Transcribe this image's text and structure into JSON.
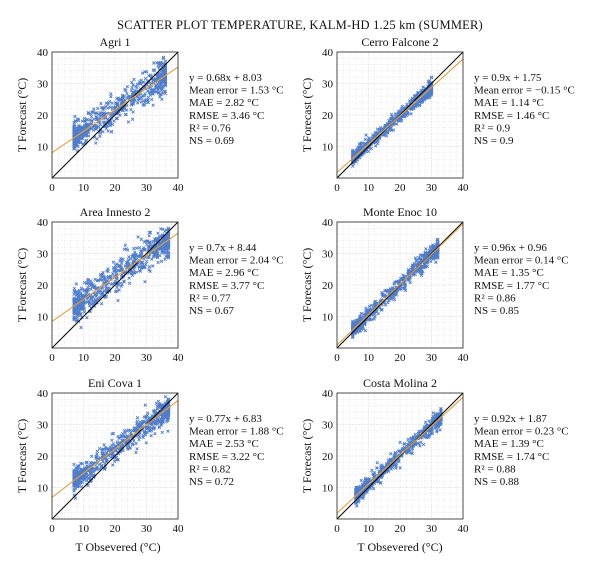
{
  "figure": {
    "title": "SCATTER PLOT TEMPERATURE, KALM-HD 1.25 km (SUMMER)",
    "xlabel_bottom": "T Obsevered (°C)",
    "colors": {
      "points": "#3f6fc4",
      "fit_line": "#e3a13b",
      "identity_line": "#000000",
      "grid": "#d9d9d9"
    }
  },
  "chart_data": [
    {
      "type": "scatter",
      "title": "Agri 1",
      "xlabel": "",
      "ylabel": "T Forecast (°C)",
      "xlim": [
        0,
        40
      ],
      "ylim": [
        0,
        40
      ],
      "xticks": [
        "0",
        "10",
        "20",
        "30",
        "40"
      ],
      "yticks": [
        "10",
        "20",
        "30",
        "40"
      ],
      "grid": true,
      "fit": {
        "slope": 0.68,
        "intercept": 8.03
      },
      "point_cloud": {
        "x_range": [
          7,
          36
        ],
        "spread": 3.5,
        "count": 650
      },
      "stats": [
        "y = 0.68x + 8.03",
        "Mean error = 1.53 °C",
        "MAE = 2.82 °C",
        "RMSE = 3.46 °C",
        "R² = 0.76",
        "NS = 0.69"
      ]
    },
    {
      "type": "scatter",
      "title": "Cerro Falcone 2",
      "xlabel": "",
      "ylabel": "T Forecast (°C)",
      "xlim": [
        0,
        40
      ],
      "ylim": [
        0,
        40
      ],
      "xticks": [
        "0",
        "10",
        "20",
        "30",
        "40"
      ],
      "yticks": [
        "10",
        "20",
        "30",
        "40"
      ],
      "grid": true,
      "fit": {
        "slope": 0.9,
        "intercept": 1.75
      },
      "point_cloud": {
        "x_range": [
          5,
          30
        ],
        "spread": 1.6,
        "count": 600
      },
      "stats": [
        "y = 0.9x + 1.75",
        "Mean error = −0.15 °C",
        "MAE = 1.14 °C",
        "RMSE = 1.46 °C",
        "R² = 0.9",
        "NS = 0.9"
      ]
    },
    {
      "type": "scatter",
      "title": "Area Innesto 2",
      "xlabel": "",
      "ylabel": "T Forecast (°C)",
      "xlim": [
        0,
        40
      ],
      "ylim": [
        0,
        40
      ],
      "xticks": [
        "0",
        "10",
        "20",
        "30",
        "40"
      ],
      "yticks": [
        "10",
        "20",
        "30",
        "40"
      ],
      "grid": true,
      "fit": {
        "slope": 0.7,
        "intercept": 8.44
      },
      "point_cloud": {
        "x_range": [
          7,
          37
        ],
        "spread": 3.8,
        "count": 650
      },
      "stats": [
        "y = 0.7x + 8.44",
        "Mean error = 2.04 °C",
        "MAE = 2.96 °C",
        "RMSE = 3.77 °C",
        "R² = 0.77",
        "NS = 0.67"
      ]
    },
    {
      "type": "scatter",
      "title": "Monte Enoc 10",
      "xlabel": "",
      "ylabel": "T Forecast (°C)",
      "xlim": [
        0,
        40
      ],
      "ylim": [
        0,
        40
      ],
      "xticks": [
        "0",
        "10",
        "20",
        "30",
        "40"
      ],
      "yticks": [
        "10",
        "20",
        "30",
        "40"
      ],
      "grid": true,
      "fit": {
        "slope": 0.96,
        "intercept": 0.96
      },
      "point_cloud": {
        "x_range": [
          5,
          32
        ],
        "spread": 1.9,
        "count": 600
      },
      "stats": [
        "y = 0.96x + 0.96",
        "Mean error = 0.14 °C",
        "MAE = 1.35 °C",
        "RMSE = 1.77 °C",
        "R² = 0.86",
        "NS = 0.85"
      ]
    },
    {
      "type": "scatter",
      "title": "Eni Cova 1",
      "xlabel": "",
      "ylabel": "T Forecast (°C)",
      "xlim": [
        0,
        40
      ],
      "ylim": [
        0,
        40
      ],
      "xticks": [
        "0",
        "10",
        "20",
        "30",
        "40"
      ],
      "yticks": [
        "10",
        "20",
        "30",
        "40"
      ],
      "grid": true,
      "fit": {
        "slope": 0.77,
        "intercept": 6.83
      },
      "point_cloud": {
        "x_range": [
          7,
          37
        ],
        "spread": 3.0,
        "count": 650
      },
      "stats": [
        "y = 0.77x + 6.83",
        "Mean error = 1.88 °C",
        "MAE = 2.53 °C",
        "RMSE = 3.22 °C",
        "R² = 0.82",
        "NS = 0.72"
      ]
    },
    {
      "type": "scatter",
      "title": "Costa Molina 2",
      "xlabel": "",
      "ylabel": "T Forecast (°C)",
      "xlim": [
        0,
        40
      ],
      "ylim": [
        0,
        40
      ],
      "xticks": [
        "0",
        "10",
        "20",
        "30",
        "40"
      ],
      "yticks": [
        "10",
        "20",
        "30",
        "40"
      ],
      "grid": true,
      "fit": {
        "slope": 0.92,
        "intercept": 1.87
      },
      "point_cloud": {
        "x_range": [
          6,
          33
        ],
        "spread": 1.8,
        "count": 600
      },
      "stats": [
        "y = 0.92x + 1.87",
        "Mean error = 0.23 °C",
        "MAE = 1.39 °C",
        "RMSE = 1.74 °C",
        "R² = 0.88",
        "NS = 0.88"
      ]
    }
  ]
}
